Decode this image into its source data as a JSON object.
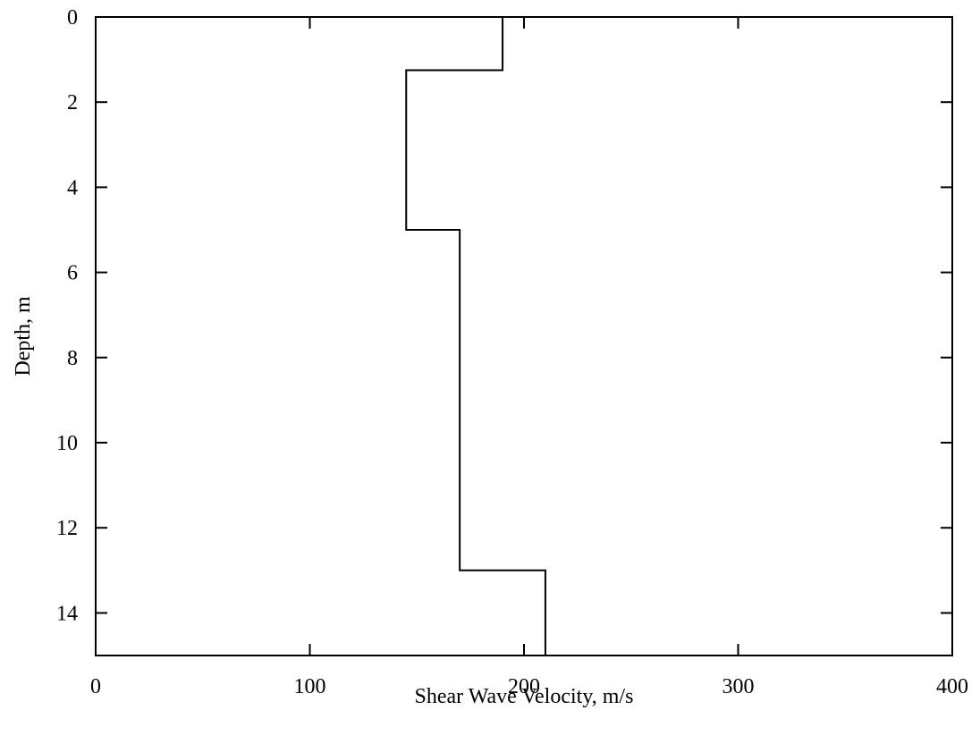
{
  "chart_data": {
    "type": "line",
    "title": "",
    "xlabel": "Shear Wave Velocity, m/s",
    "ylabel": "Depth, m",
    "xlim": [
      0,
      400
    ],
    "ylim": [
      0,
      15
    ],
    "y_inverted": true,
    "grid": false,
    "x_ticks": [
      0,
      100,
      200,
      300,
      400
    ],
    "x_tick_labels": [
      "0",
      "100",
      "200",
      "300",
      "400"
    ],
    "y_ticks": [
      0,
      2,
      4,
      6,
      8,
      10,
      12,
      14
    ],
    "y_tick_labels": [
      "0",
      "2",
      "4",
      "6",
      "8",
      "10",
      "12",
      "14"
    ],
    "series": [
      {
        "line_color": "#000000",
        "step_profile": [
          {
            "velocity": 190,
            "depth_top": 0,
            "depth_bottom": 1.25
          },
          {
            "velocity": 145,
            "depth_top": 1.25,
            "depth_bottom": 5
          },
          {
            "velocity": 170,
            "depth_top": 5,
            "depth_bottom": 13
          },
          {
            "velocity": 210,
            "depth_top": 13,
            "depth_bottom": 15
          }
        ]
      }
    ]
  }
}
